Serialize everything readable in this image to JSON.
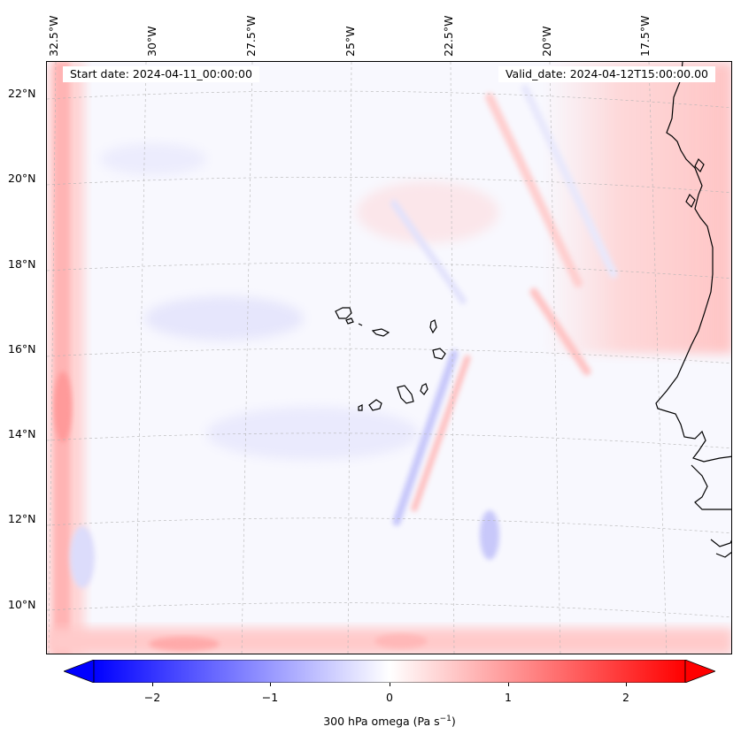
{
  "map": {
    "start_label": "Start date: 2024-04-11_00:00:00",
    "valid_label": "Valid_date: 2024-04-12T15:00:00.00",
    "lon_labels": [
      "32.5°W",
      "30°W",
      "27.5°W",
      "25°W",
      "22.5°W",
      "20°W",
      "17.5°W"
    ],
    "lat_labels": [
      "22°N",
      "20°N",
      "18°N",
      "16°N",
      "14°N",
      "12°N",
      "10°N"
    ],
    "extent": {
      "lon_min": -32.6,
      "lon_max": -15.9,
      "lat_min": 8.9,
      "lat_max": 22.8
    },
    "colors": {
      "negative": "#0000ff",
      "zero": "#ffffff",
      "positive": "#ff0000",
      "coastline": "#000000",
      "gridline": "#b0b0b0"
    }
  },
  "colorbar": {
    "label": "300 hPa omega (Pa s",
    "label_sup": "−1",
    "label_end": ")",
    "ticks": [
      "−2",
      "−1",
      "0",
      "1",
      "2"
    ],
    "tick_values": [
      -2,
      -1,
      0,
      1,
      2
    ],
    "range": [
      -2.6,
      2.6
    ],
    "extend": "both"
  }
}
